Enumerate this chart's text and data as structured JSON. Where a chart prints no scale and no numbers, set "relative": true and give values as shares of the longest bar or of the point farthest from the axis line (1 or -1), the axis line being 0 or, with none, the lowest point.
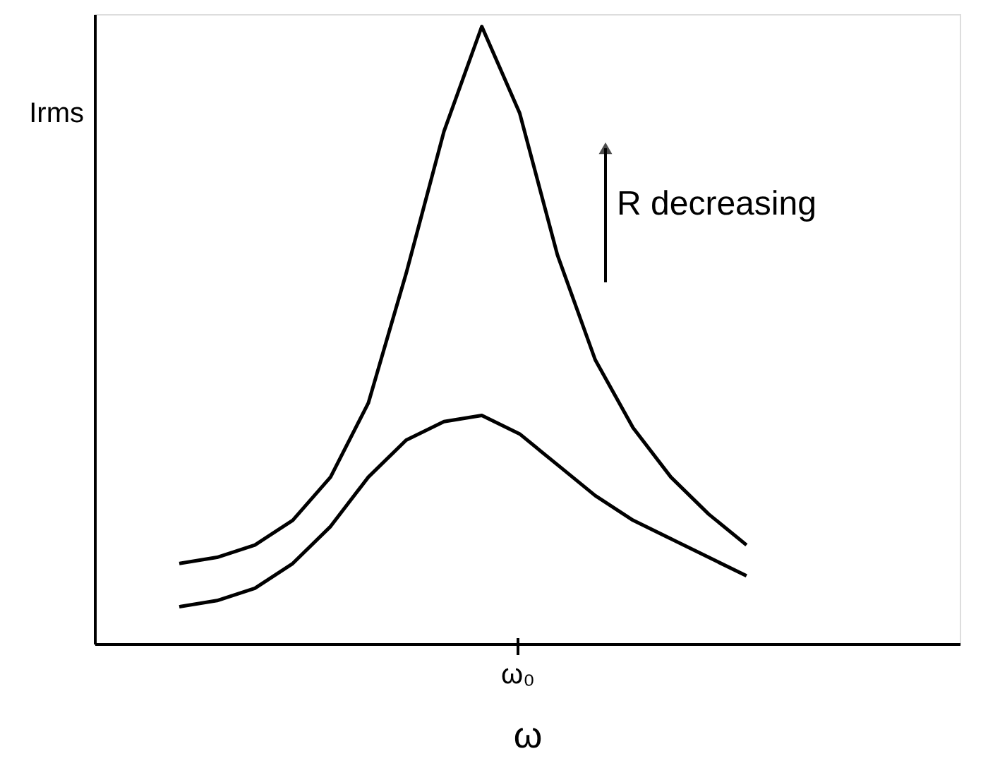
{
  "chart_data": {
    "type": "line",
    "relative": true,
    "xlabel": "ω",
    "ylabel": "Irms",
    "marker": "none",
    "line_style": "solid",
    "annotations": [
      "R decreasing",
      "ω₀"
    ],
    "categories": [
      null,
      null,
      null,
      null,
      null,
      null,
      null,
      null,
      null,
      null,
      null,
      null,
      null,
      null,
      null,
      null
    ],
    "series": [
      {
        "color": "#000000",
        "values": [
          0.13,
          0.14,
          0.16,
          0.2,
          0.27,
          0.39,
          0.6,
          0.83,
          1.0,
          0.86,
          0.63,
          0.46,
          0.35,
          0.27,
          0.21,
          0.16
        ]
      },
      {
        "color": "#000000",
        "values": [
          0.06,
          0.07,
          0.09,
          0.13,
          0.19,
          0.27,
          0.33,
          0.36,
          0.37,
          0.34,
          0.29,
          0.24,
          0.2,
          0.17,
          0.14,
          0.11
        ]
      }
    ]
  }
}
